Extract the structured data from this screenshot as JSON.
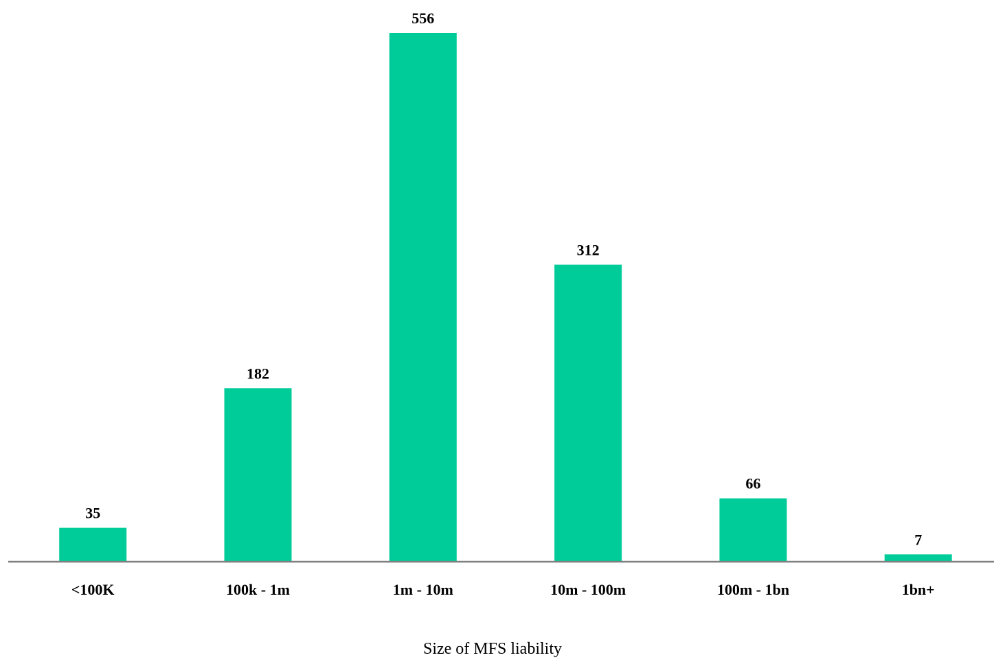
{
  "chart_data": {
    "type": "bar",
    "categories": [
      "<100K",
      "100k - 1m",
      "1m - 10m",
      "10m - 100m",
      "100m - 1bn",
      "1bn+"
    ],
    "values": [
      35,
      182,
      556,
      312,
      66,
      7
    ],
    "xlabel": "Size of MFS liability",
    "ylabel": "",
    "ylim": [
      0,
      556
    ],
    "grid": false,
    "legend": "none",
    "data_labels": true,
    "bar_color": "#00cc99",
    "axis_color": "#808080"
  }
}
